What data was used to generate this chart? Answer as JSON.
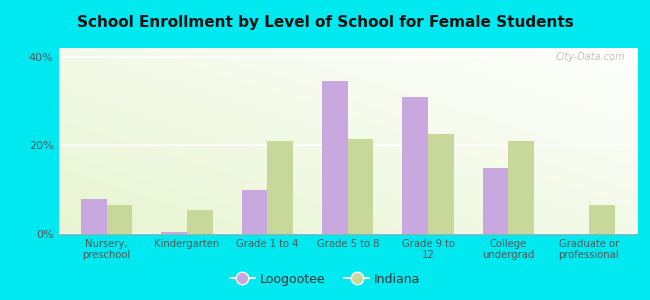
{
  "title": "School Enrollment by Level of School for Female Students",
  "categories": [
    "Nursery,\npreschool",
    "Kindergarten",
    "Grade 1 to 4",
    "Grade 5 to 8",
    "Grade 9 to\n12",
    "College\nundergrad",
    "Graduate or\nprofessional"
  ],
  "loogootee_values": [
    8.0,
    0.5,
    10.0,
    34.5,
    31.0,
    15.0,
    0.0
  ],
  "indiana_values": [
    6.5,
    5.5,
    21.0,
    21.5,
    22.5,
    21.0,
    6.5
  ],
  "loogootee_color": "#c9a8e0",
  "indiana_color": "#c8d89a",
  "ylim": [
    0,
    42
  ],
  "yticks": [
    0,
    20,
    40
  ],
  "ytick_labels": [
    "0%",
    "20%",
    "40%"
  ],
  "background_color": "#00e8f0",
  "plot_bg_color": "#eaf5e0",
  "watermark": "City-Data.com",
  "legend_labels": [
    "Loogootee",
    "Indiana"
  ],
  "bar_width": 0.32,
  "tick_color": "#555555",
  "title_color": "#111111"
}
